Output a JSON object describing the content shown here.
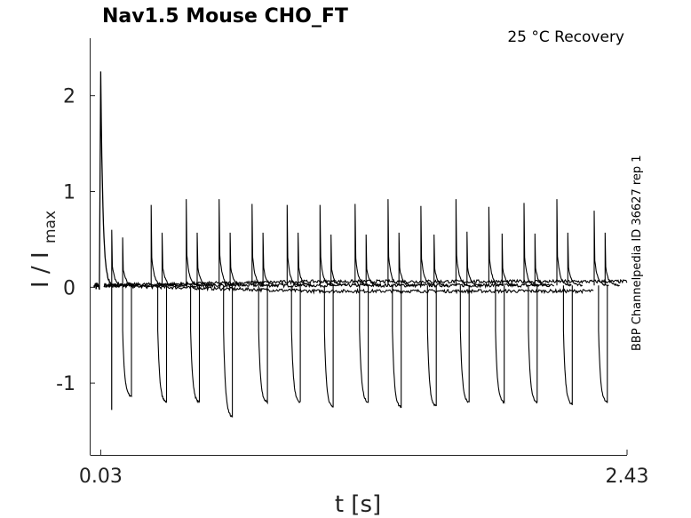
{
  "chart_data": {
    "type": "line",
    "title": "Nav1.5  Mouse  CHO_FT",
    "annotation": "25 °C  Recovery",
    "side_label": "BBP Channelpedia ID 36627 rep 1",
    "xlabel": "t [s]",
    "ylabel_main": "I / I",
    "ylabel_sub": "max",
    "x_ticks": [
      "0.03",
      "2.43"
    ],
    "x_tick_values": [
      0.03,
      2.43
    ],
    "y_ticks": [
      "-1",
      "0",
      "1",
      "2"
    ],
    "y_tick_values": [
      -1,
      0,
      1,
      2
    ],
    "xlim": [
      0.0,
      2.43
    ],
    "ylim": [
      -1.75,
      2.6
    ],
    "grid": false,
    "initial_pulse": {
      "t": 0.03,
      "peak": 2.25,
      "trough": -0.02
    },
    "second_pulse": {
      "t": 0.08,
      "peak": 0.6,
      "trough": -1.28
    },
    "up_pulses": {
      "t": [
        0.08,
        0.13,
        0.26,
        0.31,
        0.42,
        0.47,
        0.57,
        0.62,
        0.72,
        0.77,
        0.88,
        0.93,
        1.03,
        1.08,
        1.19,
        1.24,
        1.34,
        1.39,
        1.49,
        1.55,
        1.65,
        1.7,
        1.8,
        1.86,
        1.96,
        2.01,
        2.11,
        2.16,
        2.28,
        2.33
      ],
      "peak": [
        0.6,
        0.52,
        0.86,
        0.57,
        0.92,
        0.57,
        0.92,
        0.57,
        0.87,
        0.57,
        0.86,
        0.57,
        0.86,
        0.55,
        0.87,
        0.55,
        0.92,
        0.57,
        0.85,
        0.55,
        0.92,
        0.58,
        0.84,
        0.56,
        0.88,
        0.56,
        0.92,
        0.57,
        0.8,
        0.57
      ]
    },
    "down_pulses": {
      "t": [
        0.13,
        0.29,
        0.44,
        0.59,
        0.75,
        0.9,
        1.05,
        1.21,
        1.36,
        1.52,
        1.67,
        1.83,
        1.98,
        2.14,
        2.3
      ],
      "trough": [
        -1.14,
        -1.2,
        -1.2,
        -1.35,
        -1.2,
        -1.2,
        -1.25,
        -1.2,
        -1.25,
        -1.24,
        -1.2,
        -1.2,
        -1.2,
        -1.22,
        -1.2
      ]
    },
    "baseline": {
      "value": 0.02,
      "end": [
        2.1,
        2.28,
        2.43
      ]
    }
  }
}
